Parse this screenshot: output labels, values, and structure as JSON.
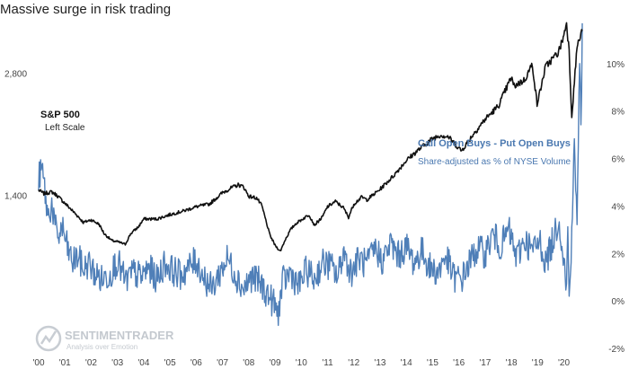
{
  "chart_data": {
    "type": "line",
    "title": "Massive surge in risk trading",
    "colors": {
      "sp500": "#111111",
      "call_put": "#4f7fb8",
      "annotation_blue": "#4a78b0",
      "logo": "#c4c9cf"
    },
    "x_ticks": [
      "'00",
      "'01",
      "'02",
      "'03",
      "'04",
      "'05",
      "'06",
      "'07",
      "'08",
      "'09",
      "'10",
      "'11",
      "'12",
      "'13",
      "'14",
      "'15",
      "'16",
      "'17",
      "'18",
      "'19",
      "'20"
    ],
    "left_axis": {
      "ticks": [
        "1,400",
        "2,800"
      ],
      "tick_values": [
        1400,
        2800
      ],
      "scale": "linear",
      "ylim": [
        -350,
        3450
      ]
    },
    "right_axis": {
      "ticks": [
        "-2%",
        "0%",
        "2%",
        "4%",
        "6%",
        "8%",
        "10%"
      ],
      "tick_values": [
        -2,
        0,
        2,
        4,
        6,
        8,
        10
      ],
      "ylim": [
        -2,
        12
      ]
    },
    "grid": false,
    "annotations": {
      "sp500_label": "S&P 500",
      "sp500_sub": "Left Scale",
      "callput_label": "Call Open Buys - Put Open Buys",
      "callput_sub": "Share-adjusted as % of NYSE Volume"
    },
    "logo": {
      "brand": "SENTIMENTRADER",
      "tagline": "Analysis over Emotion"
    },
    "series": [
      {
        "axis": "left",
        "x": [
          2000.0,
          2000.2,
          2000.5,
          2000.7,
          2001.0,
          2001.2,
          2001.5,
          2001.7,
          2002.0,
          2002.3,
          2002.5,
          2002.8,
          2003.0,
          2003.3,
          2003.5,
          2003.8,
          2004.0,
          2004.5,
          2005.0,
          2005.5,
          2006.0,
          2006.5,
          2007.0,
          2007.3,
          2007.6,
          2007.8,
          2008.0,
          2008.3,
          2008.5,
          2008.8,
          2009.0,
          2009.2,
          2009.4,
          2009.6,
          2009.8,
          2010.0,
          2010.3,
          2010.5,
          2010.8,
          2011.0,
          2011.3,
          2011.6,
          2011.8,
          2012.0,
          2012.3,
          2012.5,
          2012.8,
          2013.0,
          2013.5,
          2014.0,
          2014.5,
          2015.0,
          2015.3,
          2015.6,
          2016.0,
          2016.1,
          2016.5,
          2017.0,
          2017.5,
          2018.0,
          2018.1,
          2018.5,
          2018.8,
          2018.98,
          2019.3,
          2019.5,
          2019.8,
          2020.0,
          2020.1,
          2020.2,
          2020.3,
          2020.5,
          2020.7
        ],
        "values": [
          1460,
          1420,
          1440,
          1400,
          1310,
          1250,
          1160,
          1090,
          1120,
          1070,
          960,
          880,
          870,
          840,
          960,
          1040,
          1130,
          1130,
          1180,
          1220,
          1270,
          1300,
          1430,
          1480,
          1520,
          1500,
          1390,
          1370,
          1280,
          950,
          830,
          760,
          900,
          1010,
          1080,
          1120,
          1180,
          1060,
          1150,
          1270,
          1330,
          1260,
          1150,
          1300,
          1380,
          1350,
          1420,
          1470,
          1620,
          1800,
          1930,
          2050,
          2090,
          2070,
          1940,
          1910,
          2080,
          2270,
          2420,
          2750,
          2650,
          2720,
          2900,
          2440,
          2870,
          2940,
          3040,
          3230,
          3380,
          3050,
          2300,
          3100,
          3280
        ]
      },
      {
        "axis": "right",
        "x": [
          2000.0,
          2000.15,
          2000.35,
          2000.5,
          2000.7,
          2000.9,
          2001.1,
          2001.3,
          2001.5,
          2001.7,
          2001.9,
          2002.1,
          2002.4,
          2002.7,
          2003.0,
          2003.3,
          2003.6,
          2003.9,
          2004.2,
          2004.5,
          2004.8,
          2005.1,
          2005.4,
          2005.7,
          2006.0,
          2006.3,
          2006.6,
          2006.9,
          2007.2,
          2007.5,
          2007.8,
          2008.1,
          2008.4,
          2008.7,
          2009.0,
          2009.1,
          2009.3,
          2009.6,
          2009.9,
          2010.2,
          2010.5,
          2010.8,
          2011.1,
          2011.4,
          2011.6,
          2011.9,
          2012.2,
          2012.5,
          2012.8,
          2013.1,
          2013.4,
          2013.7,
          2014.0,
          2014.3,
          2014.6,
          2014.9,
          2015.2,
          2015.5,
          2015.8,
          2016.1,
          2016.4,
          2016.7,
          2017.0,
          2017.3,
          2017.6,
          2017.9,
          2018.2,
          2018.5,
          2018.8,
          2019.1,
          2019.3,
          2019.6,
          2019.8,
          2020.0,
          2020.1,
          2020.15,
          2020.2,
          2020.3,
          2020.4,
          2020.5,
          2020.55,
          2020.6,
          2020.65,
          2020.7
        ],
        "values": [
          5.2,
          5.5,
          3.5,
          4.1,
          2.6,
          3.1,
          2.2,
          1.6,
          1.9,
          1.3,
          1.6,
          1.2,
          0.9,
          1.1,
          1.7,
          0.8,
          1.2,
          1.0,
          1.4,
          0.9,
          1.6,
          1.3,
          1.1,
          1.4,
          1.7,
          1.0,
          0.5,
          1.2,
          1.8,
          1.1,
          0.5,
          1.0,
          0.8,
          0.3,
          -0.2,
          -0.6,
          0.8,
          1.2,
          0.6,
          1.3,
          0.9,
          1.6,
          1.5,
          1.0,
          2.1,
          1.2,
          1.8,
          1.5,
          2.2,
          1.7,
          2.4,
          1.9,
          2.3,
          1.6,
          2.1,
          1.4,
          1.2,
          1.9,
          1.0,
          0.9,
          1.6,
          2.2,
          2.0,
          2.8,
          2.3,
          3.0,
          1.8,
          2.6,
          2.1,
          2.5,
          1.6,
          2.6,
          3.5,
          1.8,
          0.4,
          3.2,
          -0.1,
          3.0,
          6.5,
          3.5,
          6.2,
          10.4,
          7.0,
          11.7
        ]
      }
    ]
  }
}
